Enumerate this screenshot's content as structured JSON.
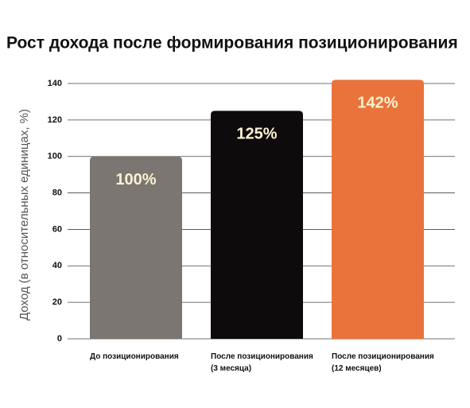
{
  "chart_data": {
    "type": "bar",
    "title": "Рост дохода после формирования позиционирования",
    "y_label": "Доход (в относительных единицах, %)",
    "categories": [
      "До позиционирования",
      "После позиционирования\n(3 месяца)",
      "После позиционирования\n(12 месяцев)"
    ],
    "values": [
      100,
      125,
      142
    ],
    "value_labels": [
      "100%",
      "125%",
      "142%"
    ],
    "colors": [
      "#7b7671",
      "#0d0b0c",
      "#e9733a"
    ],
    "ylim": [
      0,
      140
    ],
    "yticks": [
      0,
      20,
      40,
      60,
      80,
      100,
      120,
      140
    ],
    "grid": true
  }
}
